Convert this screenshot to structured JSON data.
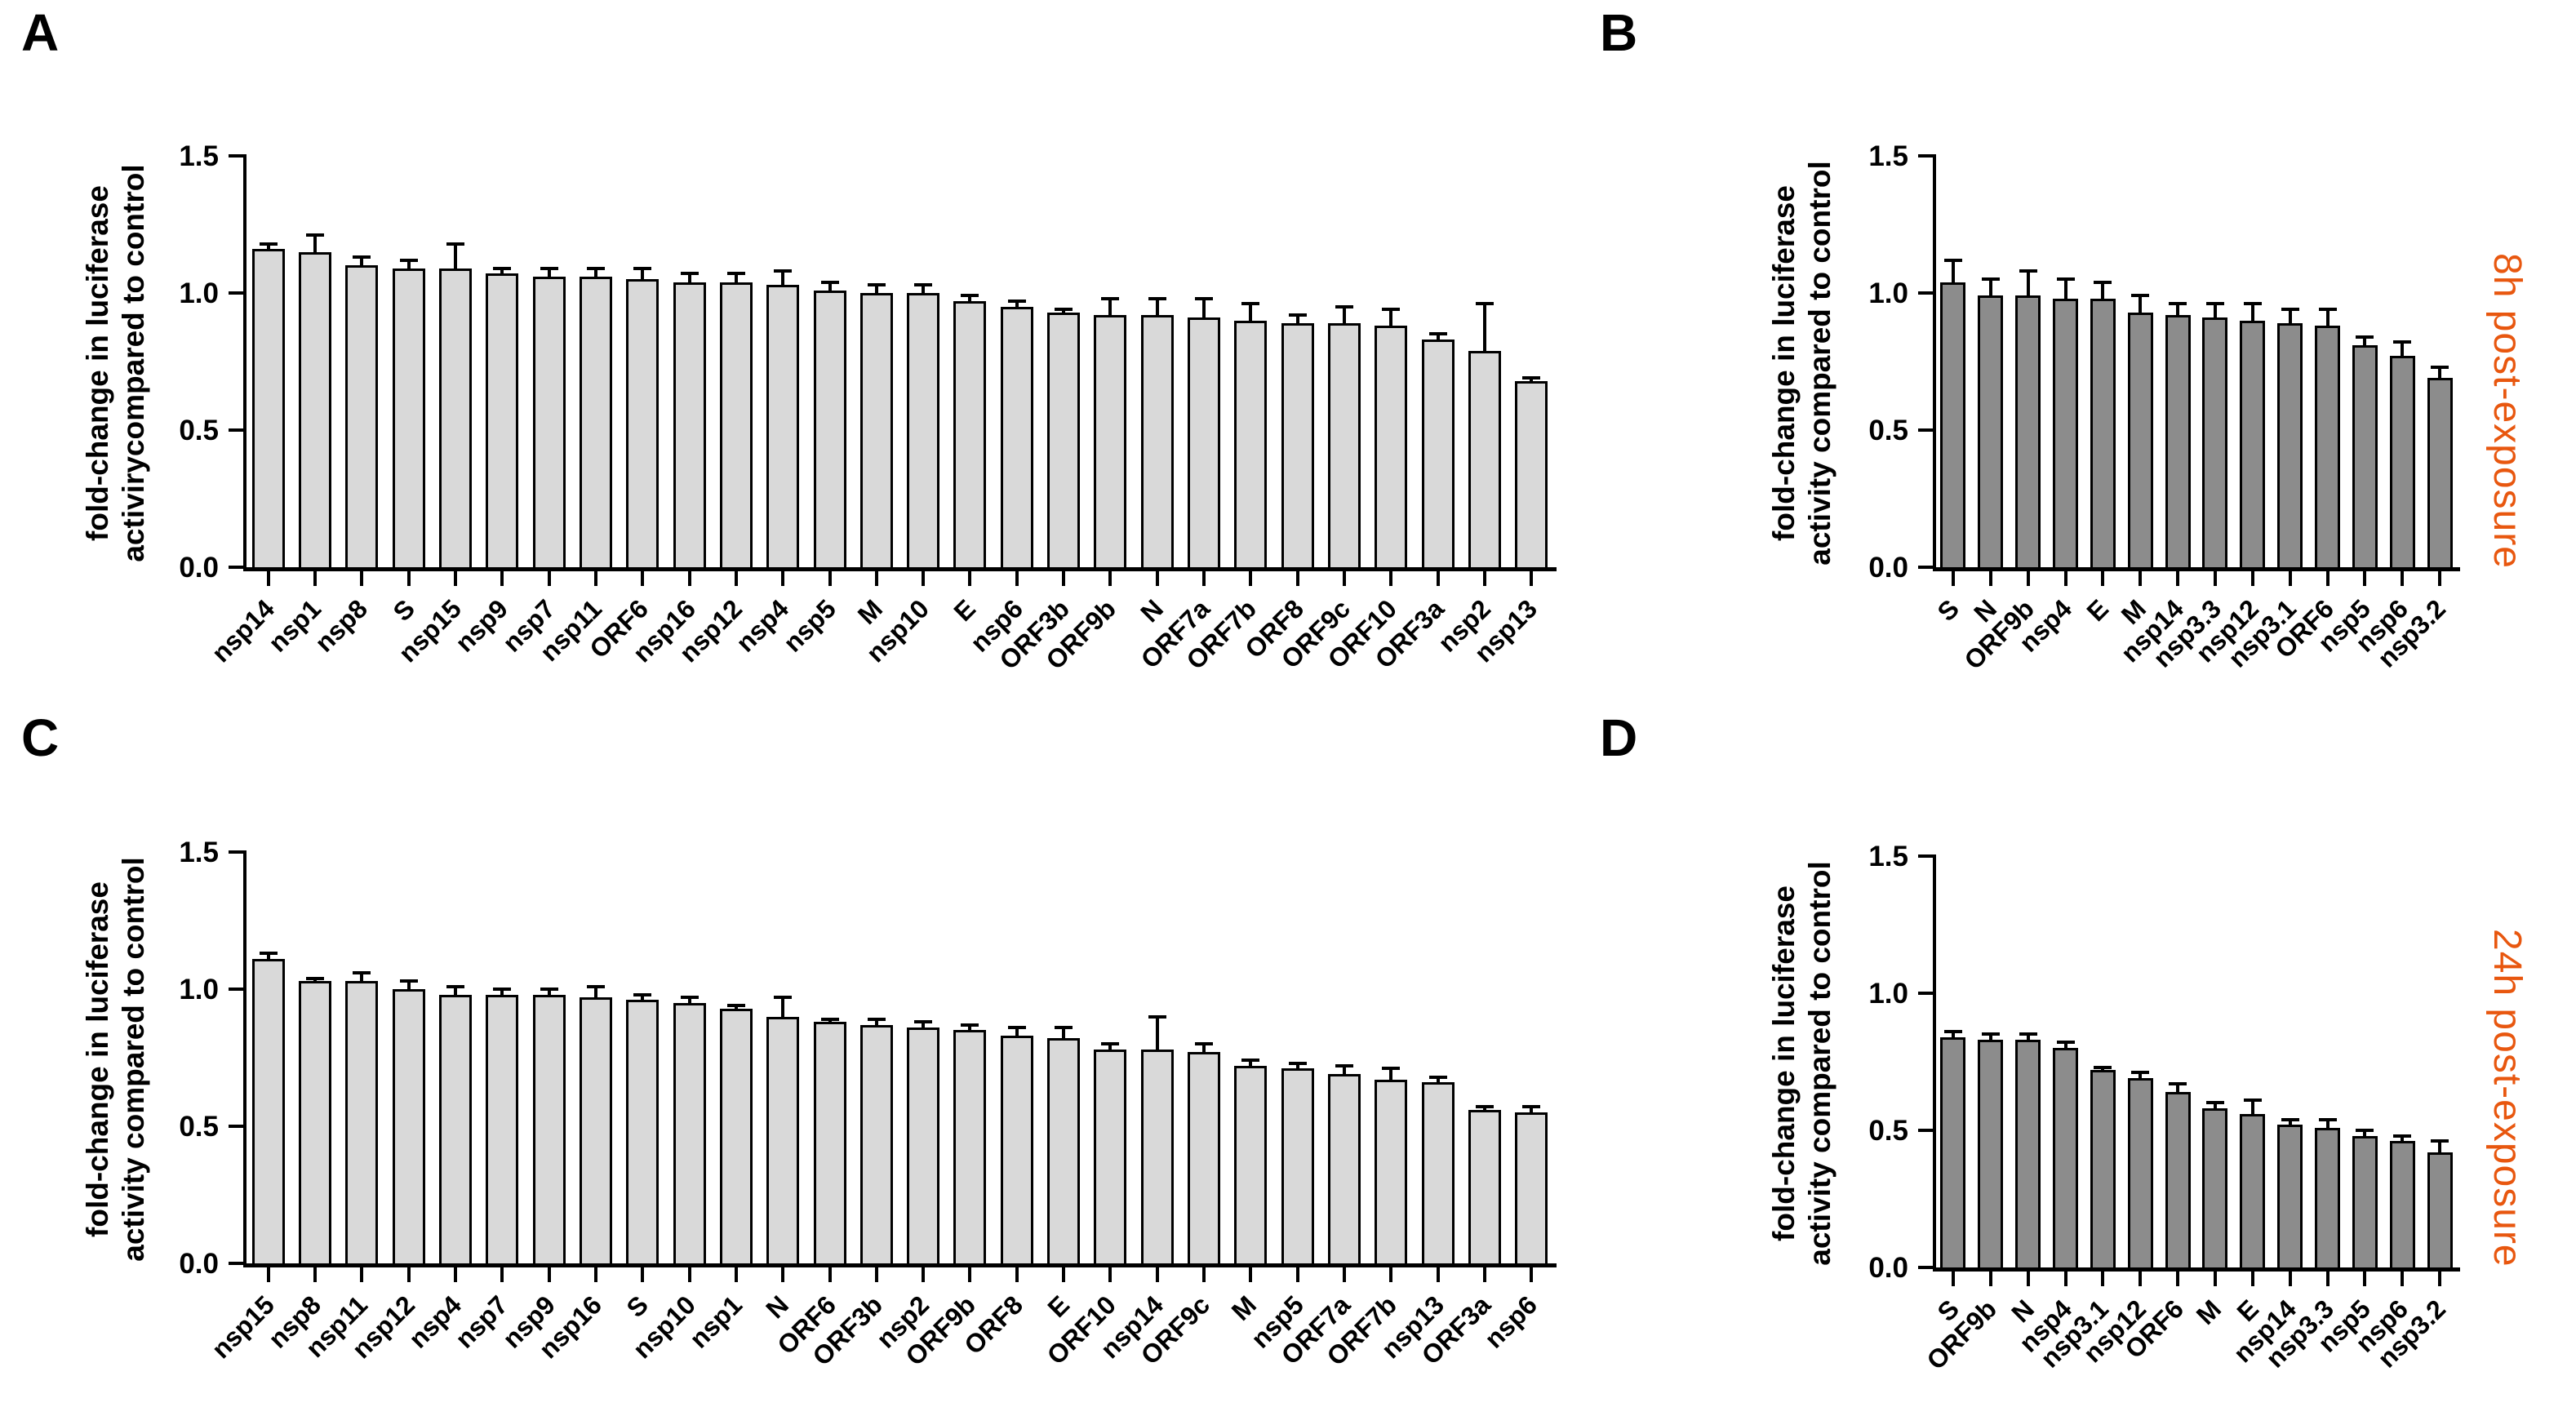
{
  "figure": {
    "background": "#ffffff",
    "accent_orange": "#e8570f",
    "bar_light": "#d9d9d9",
    "bar_dark": "#8c8c8c",
    "bar_border": "#000000",
    "side_labels": [
      {
        "text": "8h post-exposure",
        "color": "#e8570f"
      },
      {
        "text": "24h post-exposure",
        "color": "#e8570f"
      }
    ]
  },
  "chart_data": [
    {
      "type": "bar",
      "panel_letter": "A",
      "ylabel_line1": "fold-change in luciferase",
      "ylabel_line2": "activirycompared to control",
      "ylim": [
        0,
        1.5
      ],
      "ytick_labels": [
        "0.0",
        "0.5",
        "1.0",
        "1.5"
      ],
      "grid": false,
      "legend": "none",
      "bar_color": "#d9d9d9",
      "categories": [
        "nsp14",
        "nsp1",
        "nsp8",
        "S",
        "nsp15",
        "nsp9",
        "nsp7",
        "nsp11",
        "ORF6",
        "nsp16",
        "nsp12",
        "nsp4",
        "nsp5",
        "M",
        "nsp10",
        "E",
        "nsp6",
        "ORF3b",
        "ORF9b",
        "N",
        "ORF7a",
        "ORF7b",
        "ORF8",
        "ORF9c",
        "ORF10",
        "ORF3a",
        "nsp2",
        "nsp13"
      ],
      "values": [
        1.16,
        1.15,
        1.1,
        1.09,
        1.09,
        1.07,
        1.06,
        1.06,
        1.05,
        1.04,
        1.04,
        1.03,
        1.01,
        1.0,
        1.0,
        0.97,
        0.95,
        0.93,
        0.92,
        0.92,
        0.91,
        0.9,
        0.89,
        0.89,
        0.88,
        0.83,
        0.79,
        0.68
      ],
      "errors": [
        0.02,
        0.06,
        0.03,
        0.03,
        0.09,
        0.02,
        0.03,
        0.03,
        0.04,
        0.03,
        0.03,
        0.05,
        0.03,
        0.03,
        0.03,
        0.02,
        0.02,
        0.01,
        0.06,
        0.06,
        0.07,
        0.06,
        0.03,
        0.06,
        0.06,
        0.02,
        0.17,
        0.01
      ]
    },
    {
      "type": "bar",
      "panel_letter": "B",
      "ylabel_line1": "fold-change in luciferase",
      "ylabel_line2": "activity compared to control",
      "ylim": [
        0,
        1.5
      ],
      "ytick_labels": [
        "0.0",
        "0.5",
        "1.0",
        "1.5"
      ],
      "grid": false,
      "legend": "none",
      "bar_color": "#8c8c8c",
      "categories": [
        "S",
        "N",
        "ORF9b",
        "nsp4",
        "E",
        "M",
        "nsp14",
        "nsp3.3",
        "nsp12",
        "nsp3.1",
        "ORF6",
        "nsp5",
        "nsp6",
        "nsp3.2"
      ],
      "values": [
        1.04,
        0.99,
        0.99,
        0.98,
        0.98,
        0.93,
        0.92,
        0.91,
        0.9,
        0.89,
        0.88,
        0.81,
        0.77,
        0.69
      ],
      "errors": [
        0.08,
        0.06,
        0.09,
        0.07,
        0.06,
        0.06,
        0.04,
        0.05,
        0.06,
        0.05,
        0.06,
        0.03,
        0.05,
        0.04
      ]
    },
    {
      "type": "bar",
      "panel_letter": "C",
      "ylabel_line1": "fold-change in luciferase",
      "ylabel_line2": "activity compared to control",
      "ylim": [
        0,
        1.5
      ],
      "ytick_labels": [
        "0.0",
        "0.5",
        "1.0",
        "1.5"
      ],
      "grid": false,
      "legend": "none",
      "bar_color": "#d9d9d9",
      "categories": [
        "nsp15",
        "nsp8",
        "nsp11",
        "nsp12",
        "nsp4",
        "nsp7",
        "nsp9",
        "nsp16",
        "S",
        "nsp10",
        "nsp1",
        "N",
        "ORF6",
        "ORF3b",
        "nsp2",
        "ORF9b",
        "ORF8",
        "E",
        "ORF10",
        "nsp14",
        "ORF9c",
        "M",
        "nsp5",
        "ORF7a",
        "ORF7b",
        "nsp13",
        "ORF3a",
        "nsp6"
      ],
      "values": [
        1.11,
        1.03,
        1.03,
        1.0,
        0.98,
        0.98,
        0.98,
        0.97,
        0.96,
        0.95,
        0.93,
        0.9,
        0.88,
        0.87,
        0.86,
        0.85,
        0.83,
        0.82,
        0.78,
        0.78,
        0.77,
        0.72,
        0.71,
        0.69,
        0.67,
        0.66,
        0.56,
        0.55
      ],
      "errors": [
        0.02,
        0.01,
        0.03,
        0.03,
        0.03,
        0.02,
        0.02,
        0.04,
        0.02,
        0.02,
        0.01,
        0.07,
        0.01,
        0.02,
        0.02,
        0.02,
        0.03,
        0.04,
        0.02,
        0.12,
        0.03,
        0.02,
        0.02,
        0.03,
        0.04,
        0.02,
        0.01,
        0.02
      ]
    },
    {
      "type": "bar",
      "panel_letter": "D",
      "ylabel_line1": "fold-change in luciferase",
      "ylabel_line2": "activity compared to control",
      "ylim": [
        0,
        1.5
      ],
      "ytick_labels": [
        "0.0",
        "0.5",
        "1.0",
        "1.5"
      ],
      "grid": false,
      "legend": "none",
      "bar_color": "#8c8c8c",
      "categories": [
        "S",
        "ORF9b",
        "N",
        "nsp4",
        "nsp3.1",
        "nsp12",
        "ORF6",
        "M",
        "E",
        "nsp14",
        "nsp3.3",
        "nsp5",
        "nsp6",
        "nsp3.2"
      ],
      "values": [
        0.84,
        0.83,
        0.83,
        0.8,
        0.72,
        0.69,
        0.64,
        0.58,
        0.56,
        0.52,
        0.51,
        0.48,
        0.46,
        0.42
      ],
      "errors": [
        0.02,
        0.02,
        0.02,
        0.02,
        0.01,
        0.02,
        0.03,
        0.02,
        0.05,
        0.02,
        0.03,
        0.02,
        0.02,
        0.04
      ]
    }
  ]
}
